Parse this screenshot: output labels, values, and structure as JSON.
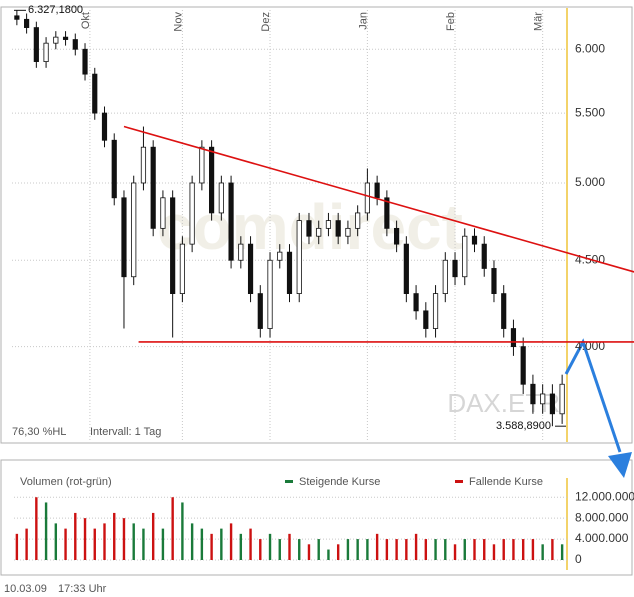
{
  "chart_data": [
    {
      "type": "candlestick",
      "open": [
        6280,
        6250,
        6180,
        5900,
        6050,
        6100,
        6080,
        6000,
        5800,
        5500,
        5300,
        4900,
        4400,
        5000,
        5250,
        4700,
        4900,
        4300,
        4600,
        5000,
        5250,
        4800,
        5000,
        4500,
        4600,
        4300,
        4100,
        4500,
        4550,
        4300,
        4750,
        4650,
        4700,
        4750,
        4650,
        4700,
        4800,
        5000,
        4900,
        4700,
        4600,
        4300,
        4200,
        4100,
        4300,
        4500,
        4400,
        4650,
        4600,
        4450,
        4300,
        4100,
        4000,
        3800,
        3700,
        3750,
        3650
      ],
      "high": [
        6327.18,
        6300,
        6230,
        6100,
        6150,
        6150,
        6130,
        6050,
        5850,
        5550,
        5350,
        4950,
        5050,
        5400,
        5300,
        4950,
        4950,
        4650,
        5050,
        5300,
        5300,
        5050,
        5050,
        4650,
        4650,
        4350,
        4550,
        4600,
        4600,
        4800,
        4800,
        4750,
        4800,
        4800,
        4750,
        4850,
        5100,
        5050,
        4950,
        4750,
        4650,
        4350,
        4250,
        4350,
        4550,
        4550,
        4700,
        4700,
        4650,
        4500,
        4350,
        4150,
        4050,
        3850,
        3800,
        3800,
        3850
      ],
      "low": [
        6200,
        6130,
        5850,
        5850,
        6000,
        6030,
        5950,
        5750,
        5450,
        5250,
        4850,
        4100,
        4350,
        4950,
        4650,
        4650,
        4050,
        4250,
        4550,
        4950,
        4750,
        4750,
        4450,
        4450,
        4250,
        4050,
        4050,
        4450,
        4250,
        4250,
        4600,
        4600,
        4650,
        4600,
        4600,
        4650,
        4750,
        4850,
        4650,
        4550,
        4250,
        4150,
        4050,
        4050,
        4250,
        4350,
        4350,
        4550,
        4400,
        4250,
        4050,
        3950,
        3750,
        3650,
        3650,
        3588.89,
        3600
      ],
      "close": [
        6250,
        6180,
        5900,
        6050,
        6100,
        6080,
        6000,
        5800,
        5500,
        5300,
        4900,
        4400,
        5000,
        5250,
        4700,
        4900,
        4300,
        4600,
        5000,
        5250,
        4800,
        5000,
        4500,
        4600,
        4300,
        4100,
        4500,
        4550,
        4300,
        4750,
        4650,
        4700,
        4750,
        4650,
        4700,
        4800,
        5000,
        4900,
        4700,
        4600,
        4300,
        4200,
        4100,
        4300,
        4500,
        4400,
        4650,
        4600,
        4450,
        4300,
        4100,
        4000,
        3800,
        3700,
        3750,
        3650,
        3800
      ],
      "xlim": [
        -0.5,
        56.5
      ],
      "xticks": [
        {
          "value": 7.5,
          "label": "Okt"
        },
        {
          "value": 17,
          "label": "Nov"
        },
        {
          "value": 26,
          "label": "Dez"
        },
        {
          "value": 36,
          "label": "Jan"
        },
        {
          "value": 45,
          "label": "Feb"
        },
        {
          "value": 54,
          "label": "Mär"
        }
      ],
      "ylim": [
        3580,
        6330
      ],
      "log_scale": true,
      "yticks": [
        {
          "value": 6000,
          "label": "6.000"
        },
        {
          "value": 5500,
          "label": "5.500"
        },
        {
          "value": 5000,
          "label": "5.000"
        },
        {
          "value": 4500,
          "label": "4.500"
        },
        {
          "value": 4000,
          "label": "4.000"
        }
      ],
      "high_label": {
        "value": 6327.18,
        "label": "6.327,1800"
      },
      "low_label": {
        "value": 3588.89,
        "label": "3.588,8900"
      },
      "trendlines": [
        {
          "x": [
            11,
            63.4
          ],
          "y": [
            5400,
            4429
          ],
          "color": "#dd1111"
        },
        {
          "x": [
            12.5,
            63.4
          ],
          "y": [
            4026,
            4026
          ],
          "color": "#dd1111"
        }
      ],
      "range_text": "76,30 %HL",
      "interval_text": "Intervall: 1 Tag",
      "symbol": "DAX.ETR",
      "watermark": "comdirect"
    },
    {
      "type": "bar",
      "title": "Volumen (rot-grün)",
      "values": [
        5000000,
        6000000,
        12000000,
        11000000,
        7000000,
        6000000,
        9000000,
        8000000,
        6000000,
        7000000,
        9000000,
        8000000,
        7000000,
        6000000,
        9000000,
        6000000,
        12000000,
        11000000,
        7000000,
        6000000,
        5000000,
        6000000,
        7000000,
        5000000,
        6000000,
        4000000,
        5000000,
        4000000,
        5000000,
        4000000,
        3000000,
        4000000,
        2000000,
        3000000,
        4000000,
        4000000,
        4000000,
        5000000,
        4000000,
        4000000,
        4000000,
        5000000,
        4000000,
        4000000,
        4000000,
        3000000,
        4000000,
        4000000,
        4000000,
        3000000,
        4000000,
        4000000,
        4000000,
        4000000,
        3000000,
        4000000,
        3000000
      ],
      "legend": [
        {
          "name": "Steigende Kurse",
          "color": "#1a7a3a"
        },
        {
          "name": "Fallende Kurse",
          "color": "#cc1111"
        }
      ],
      "ylim": [
        0,
        13000000
      ],
      "yticks": [
        0,
        {
          "value": 4000000,
          "label": "4.000.000"
        },
        {
          "value": 8000000,
          "label": "8.000.000"
        },
        {
          "value": 12000000,
          "label": "12.000.000"
        }
      ]
    }
  ],
  "footer": {
    "date": "10.03.09",
    "time": "17:33 Uhr"
  }
}
